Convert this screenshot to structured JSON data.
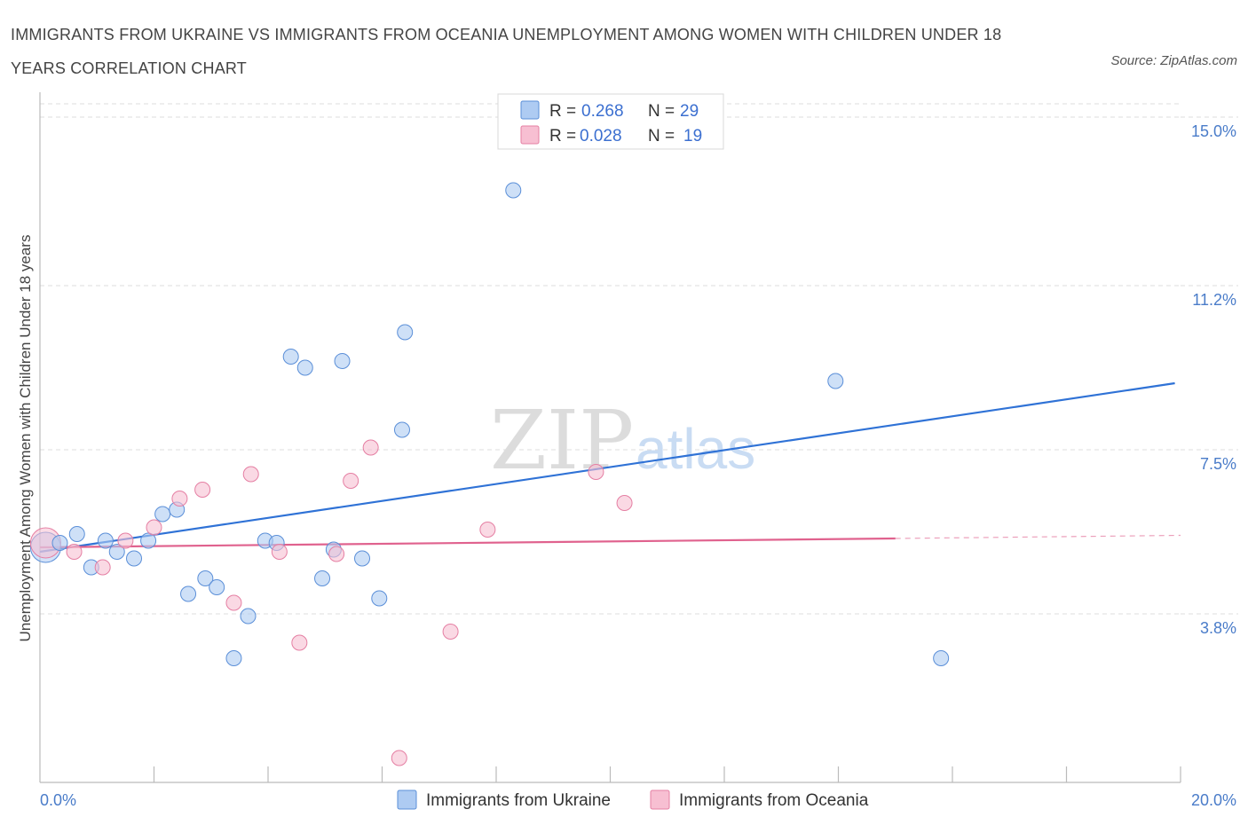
{
  "title": "IMMIGRANTS FROM UKRAINE VS IMMIGRANTS FROM OCEANIA UNEMPLOYMENT AMONG WOMEN WITH CHILDREN UNDER 18 YEARS CORRELATION CHART",
  "source": "Source: ZipAtlas.com",
  "watermark": {
    "zip": "ZIP",
    "atlas": "atlas"
  },
  "colors": {
    "ukraine_fill": "#aecbf2",
    "ukraine_stroke": "#5b8fd8",
    "ukraine_line": "#2f72d6",
    "oceania_fill": "#f7bfd2",
    "oceania_stroke": "#e57fa3",
    "oceania_line": "#e0628e",
    "tick_label": "#4a7cc9",
    "grid": "#dddddd"
  },
  "legend": {
    "rows": [
      {
        "r_label": "R =",
        "r_value": "0.268",
        "n_label": "N =",
        "n_value": "29"
      },
      {
        "r_label": "R =",
        "r_value": "0.028",
        "n_label": "N =",
        "n_value": "19"
      }
    ]
  },
  "chart_data": {
    "type": "scatter",
    "title": "IMMIGRANTS FROM UKRAINE VS IMMIGRANTS FROM OCEANIA UNEMPLOYMENT AMONG WOMEN WITH CHILDREN UNDER 18 YEARS CORRELATION CHART",
    "xlabel": "",
    "ylabel": "Unemployment Among Women with Children Under 18 years",
    "xlim": [
      0,
      20
    ],
    "ylim": [
      0,
      15.3
    ],
    "x_tick_labels": [
      "0.0%",
      "20.0%"
    ],
    "y_ticks": [
      {
        "value": 3.8,
        "label": "3.8%"
      },
      {
        "value": 7.5,
        "label": "7.5%"
      },
      {
        "value": 11.2,
        "label": "11.2%"
      },
      {
        "value": 15.0,
        "label": "15.0%"
      }
    ],
    "series": [
      {
        "name": "Immigrants from Ukraine",
        "r": 0.268,
        "n": 29,
        "trend": {
          "x": [
            0.0,
            19.9
          ],
          "y": [
            5.2,
            9.0
          ]
        },
        "points": [
          {
            "x": 0.1,
            "y": 5.3,
            "big": true
          },
          {
            "x": 0.35,
            "y": 5.4
          },
          {
            "x": 0.65,
            "y": 5.6
          },
          {
            "x": 0.9,
            "y": 4.85
          },
          {
            "x": 1.15,
            "y": 5.45
          },
          {
            "x": 1.35,
            "y": 5.2
          },
          {
            "x": 1.65,
            "y": 5.05
          },
          {
            "x": 1.9,
            "y": 5.45
          },
          {
            "x": 2.15,
            "y": 6.05
          },
          {
            "x": 2.4,
            "y": 6.15
          },
          {
            "x": 2.6,
            "y": 4.25
          },
          {
            "x": 2.9,
            "y": 4.6
          },
          {
            "x": 3.1,
            "y": 4.4
          },
          {
            "x": 3.4,
            "y": 2.8
          },
          {
            "x": 3.65,
            "y": 3.75
          },
          {
            "x": 3.95,
            "y": 5.45
          },
          {
            "x": 4.15,
            "y": 5.4
          },
          {
            "x": 4.4,
            "y": 9.6
          },
          {
            "x": 4.65,
            "y": 9.35
          },
          {
            "x": 4.95,
            "y": 4.6
          },
          {
            "x": 5.15,
            "y": 5.25
          },
          {
            "x": 5.3,
            "y": 9.5
          },
          {
            "x": 5.65,
            "y": 5.05
          },
          {
            "x": 5.95,
            "y": 4.15
          },
          {
            "x": 6.35,
            "y": 7.95
          },
          {
            "x": 6.4,
            "y": 10.15
          },
          {
            "x": 8.3,
            "y": 13.35
          },
          {
            "x": 13.95,
            "y": 9.05
          },
          {
            "x": 15.8,
            "y": 2.8
          }
        ]
      },
      {
        "name": "Immigrants from Oceania",
        "r": 0.028,
        "n": 19,
        "trend": {
          "x": [
            0.0,
            15.0
          ],
          "y": [
            5.3,
            5.5
          ]
        },
        "trend_dashed": {
          "x": [
            15.0,
            20.0
          ],
          "y": [
            5.5,
            5.57
          ]
        },
        "points": [
          {
            "x": 0.1,
            "y": 5.4,
            "big": true
          },
          {
            "x": 0.6,
            "y": 5.2
          },
          {
            "x": 1.1,
            "y": 4.85
          },
          {
            "x": 1.5,
            "y": 5.45
          },
          {
            "x": 2.0,
            "y": 5.75
          },
          {
            "x": 2.45,
            "y": 6.4
          },
          {
            "x": 2.85,
            "y": 6.6
          },
          {
            "x": 3.4,
            "y": 4.05
          },
          {
            "x": 3.7,
            "y": 6.95
          },
          {
            "x": 4.2,
            "y": 5.2
          },
          {
            "x": 4.55,
            "y": 3.15
          },
          {
            "x": 5.2,
            "y": 5.15
          },
          {
            "x": 5.45,
            "y": 6.8
          },
          {
            "x": 5.8,
            "y": 7.55
          },
          {
            "x": 6.3,
            "y": 0.55
          },
          {
            "x": 7.2,
            "y": 3.4
          },
          {
            "x": 7.85,
            "y": 5.7
          },
          {
            "x": 9.75,
            "y": 7.0
          },
          {
            "x": 10.25,
            "y": 6.3
          }
        ]
      }
    ]
  }
}
